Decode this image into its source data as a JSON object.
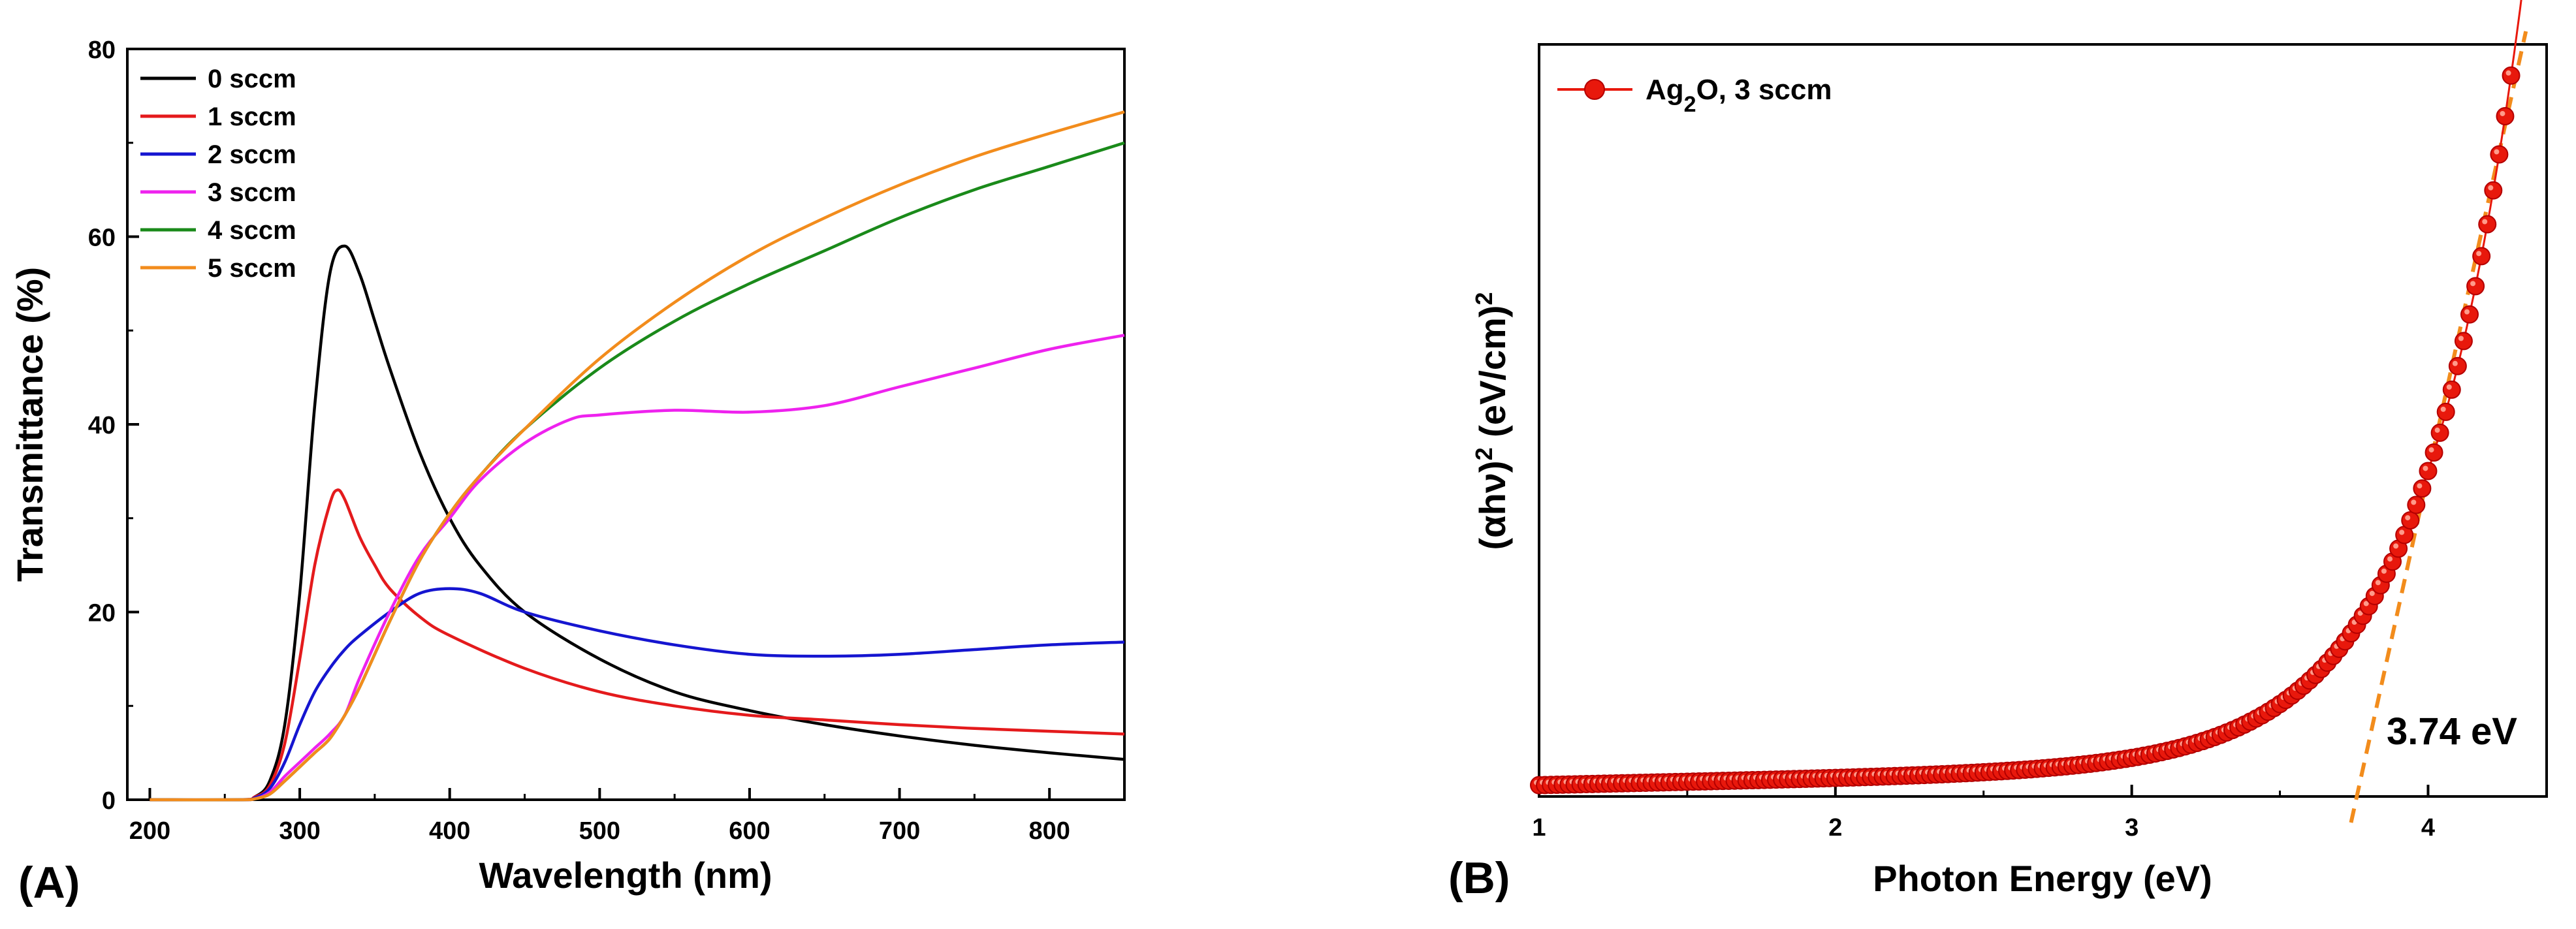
{
  "chart_data": [
    {
      "panel": "A",
      "panel_label": "(A)",
      "type": "line",
      "title": "",
      "xlabel": "Wavelength (nm)",
      "ylabel": "Transmittance (%)",
      "xlim": [
        185,
        850
      ],
      "ylim": [
        0,
        80
      ],
      "xticks": [
        200,
        300,
        400,
        500,
        600,
        700,
        800
      ],
      "yticks": [
        0,
        20,
        40,
        60,
        80
      ],
      "legend_position": "top-left",
      "series": [
        {
          "name": "0 sccm",
          "color": "#000000",
          "x": [
            200,
            260,
            270,
            280,
            290,
            300,
            310,
            320,
            330,
            340,
            350,
            360,
            380,
            400,
            420,
            450,
            500,
            550,
            600,
            650,
            700,
            750,
            800,
            850
          ],
          "y": [
            0,
            0,
            0.3,
            2,
            8,
            22,
            42,
            56,
            59,
            56,
            51,
            46,
            37,
            30,
            25,
            20,
            15,
            11.5,
            9.5,
            8,
            6.8,
            5.8,
            5,
            4.3
          ]
        },
        {
          "name": "1 sccm",
          "color": "#e41a1c",
          "x": [
            200,
            260,
            270,
            280,
            290,
            300,
            310,
            320,
            325,
            330,
            340,
            350,
            360,
            380,
            400,
            450,
            500,
            550,
            600,
            650,
            700,
            750,
            800,
            850
          ],
          "y": [
            0,
            0,
            0.3,
            1.5,
            6,
            15,
            25,
            31.5,
            33,
            32,
            28,
            25,
            22.5,
            19.5,
            17.5,
            14,
            11.5,
            10,
            9,
            8.5,
            8,
            7.6,
            7.3,
            7
          ]
        },
        {
          "name": "2 sccm",
          "color": "#1515d0",
          "x": [
            200,
            260,
            270,
            280,
            290,
            300,
            310,
            320,
            330,
            340,
            360,
            380,
            400,
            420,
            450,
            500,
            550,
            600,
            650,
            700,
            750,
            800,
            850
          ],
          "y": [
            0,
            0,
            0.2,
            1.2,
            4,
            8,
            11.5,
            14,
            16,
            17.5,
            20,
            22,
            22.5,
            22,
            20,
            18,
            16.5,
            15.5,
            15.3,
            15.5,
            16,
            16.5,
            16.8
          ]
        },
        {
          "name": "3 sccm",
          "color": "#ee22ee",
          "x": [
            200,
            260,
            270,
            280,
            290,
            300,
            310,
            320,
            330,
            340,
            360,
            380,
            400,
            420,
            450,
            480,
            500,
            550,
            600,
            650,
            700,
            750,
            800,
            850
          ],
          "y": [
            0,
            0,
            0.1,
            0.8,
            2.5,
            4,
            5.5,
            7,
            9,
            13,
            20,
            26,
            30,
            34,
            38,
            40.5,
            41,
            41.5,
            41.3,
            42,
            44,
            46,
            48,
            49.5
          ]
        },
        {
          "name": "4 sccm",
          "color": "#1a8a1a",
          "x": [
            200,
            260,
            270,
            280,
            290,
            300,
            310,
            320,
            330,
            340,
            360,
            380,
            400,
            420,
            450,
            500,
            550,
            600,
            650,
            700,
            750,
            800,
            850
          ],
          "y": [
            0,
            0,
            0.1,
            0.6,
            2,
            3.5,
            5,
            6.5,
            9,
            12,
            19,
            25.5,
            30.5,
            34.5,
            39.5,
            46,
            51,
            55,
            58.5,
            62,
            65,
            67.5,
            70
          ]
        },
        {
          "name": "5 sccm",
          "color": "#f28c1c",
          "x": [
            200,
            260,
            270,
            280,
            290,
            300,
            310,
            320,
            330,
            340,
            360,
            380,
            400,
            420,
            450,
            500,
            550,
            600,
            650,
            700,
            750,
            800,
            850
          ],
          "y": [
            0,
            0,
            0.1,
            0.6,
            2,
            3.5,
            5,
            6.5,
            9,
            12,
            19,
            25.5,
            30.5,
            34.5,
            39.5,
            47,
            53,
            58,
            62,
            65.5,
            68.5,
            71,
            73.3
          ]
        }
      ]
    },
    {
      "panel": "B",
      "panel_label": "(B)",
      "type": "scatter",
      "title": "",
      "xlabel": "Photon Energy (eV)",
      "ylabel": "(αhν)² (eV/cm)²",
      "xlim": [
        1,
        4.4
      ],
      "ylim": [
        0,
        100
      ],
      "xticks": [
        1,
        2,
        3,
        4
      ],
      "legend_position": "top-left",
      "series": [
        {
          "name": "Ag₂O, 3 sccm",
          "color": "#e8180c",
          "marker": "circle",
          "x_start": 1.0,
          "x_end": 4.28,
          "x_step": 0.02,
          "model": "tauc",
          "curve_note": "values are derived from baseline + exponential onset, scaled so y(4.28)=93"
        }
      ],
      "fit_line": {
        "name": "linear fit",
        "color": "#f28c1c",
        "dash": true,
        "x": [
          3.74,
          4.33
        ],
        "y": [
          0,
          100
        ]
      },
      "annotation": "3.74 eV",
      "bandgap": 3.74
    }
  ]
}
